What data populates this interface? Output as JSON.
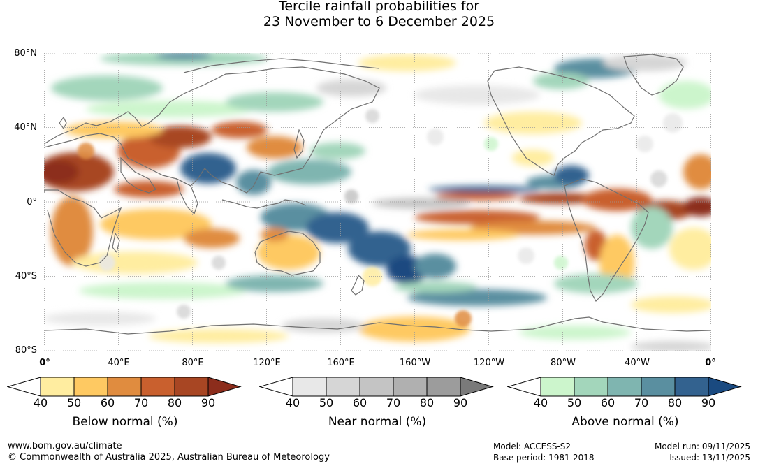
{
  "title": {
    "line1": "Tercile rainfall probabilities for",
    "line2": "23 November to 6 December 2025"
  },
  "map": {
    "lat_labels": [
      "80°N",
      "40°N",
      "0°",
      "40°S",
      "80°S"
    ],
    "lon_labels": [
      "0°",
      "40°E",
      "80°E",
      "120°E",
      "160°E",
      "160°W",
      "120°W",
      "80°W",
      "40°W",
      "0°"
    ],
    "colors": {
      "ocean_neutral": "#ffffff",
      "coastline": "#707070",
      "gridline": "#9a9a9a"
    }
  },
  "legends": [
    {
      "title": "Below normal (%)",
      "ticks": [
        "40",
        "50",
        "60",
        "70",
        "80",
        "90"
      ],
      "colors": [
        "#ffeda0",
        "#fec962",
        "#e08c3f",
        "#c9602e",
        "#a84623",
        "#8c2d1c"
      ]
    },
    {
      "title": "Near normal (%)",
      "ticks": [
        "40",
        "50",
        "60",
        "70",
        "80",
        "90"
      ],
      "colors": [
        "#e8e8e8",
        "#d6d6d6",
        "#c4c4c4",
        "#b0b0b0",
        "#9c9c9c",
        "#7a7a7a"
      ]
    },
    {
      "title": "Above normal (%)",
      "ticks": [
        "40",
        "50",
        "60",
        "70",
        "80",
        "90"
      ],
      "colors": [
        "#ccf5cc",
        "#a3d6bb",
        "#7fb5b0",
        "#5a8fa0",
        "#33628f",
        "#1a4a80"
      ]
    }
  ],
  "footer": {
    "url": "www.bom.gov.au/climate",
    "copyright": "© Commonwealth of Australia 2025, Australian Bureau of Meteorology",
    "model": "Model: ACCESS-S2",
    "base_period": "Base period: 1981-2018",
    "model_run": "Model run: 09/11/2025",
    "issued": "Issued: 13/11/2025"
  }
}
